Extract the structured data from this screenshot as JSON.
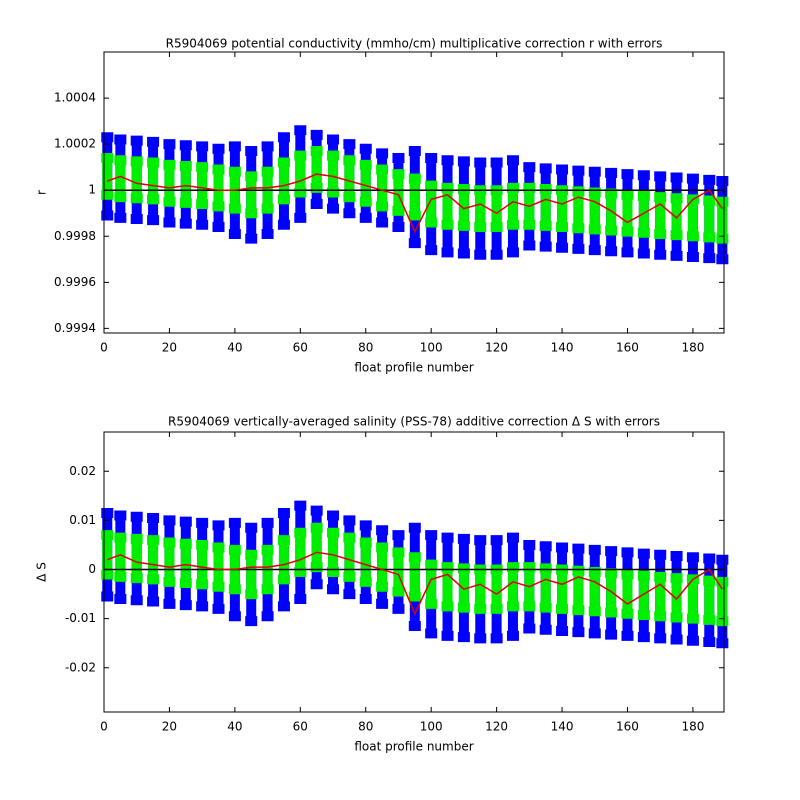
{
  "chart_data": [
    {
      "type": "errorbar",
      "title": "R5904069 potential conductivity (mmho/cm) multiplicative correction r with errors",
      "xlabel": "float profile number",
      "ylabel": "r",
      "x": [
        1,
        5,
        10,
        15,
        20,
        25,
        30,
        35,
        40,
        45,
        50,
        55,
        60,
        65,
        70,
        75,
        80,
        85,
        90,
        95,
        100,
        105,
        110,
        115,
        120,
        125,
        130,
        135,
        140,
        145,
        150,
        155,
        160,
        165,
        170,
        175,
        180,
        185,
        189
      ],
      "values": [
        1.00004,
        1.00006,
        1.00003,
        1.00002,
        1.00001,
        1.00002,
        1.00001,
        1,
        1,
        1.00001,
        1.00001,
        1.00002,
        1.00004,
        1.00007,
        1.00006,
        1.00004,
        1.00002,
        1,
        0.99998,
        0.99982,
        0.99996,
        0.99998,
        0.99992,
        0.99994,
        0.9999,
        0.99995,
        0.99993,
        0.99996,
        0.99994,
        0.99997,
        0.99995,
        0.99991,
        0.99986,
        0.9999,
        0.99994,
        0.99988,
        0.99996,
        1,
        0.99992
      ],
      "center": [
        1.00006,
        1.00005,
        1.000045,
        1.00004,
        1.00003,
        1.000025,
        1.00002,
        1.00001,
        1,
        0.99998,
        1,
        1.00004,
        1.00007,
        1.00009,
        1.00007,
        1.00005,
        1.00003,
        1.00001,
        0.99999,
        0.99997,
        0.99994,
        0.99993,
        0.999925,
        0.99992,
        0.99992,
        0.99993,
        0.99993,
        0.999925,
        0.99992,
        0.999915,
        0.99991,
        0.999905,
        0.9999,
        0.999895,
        0.99989,
        0.999885,
        0.99988,
        0.999875,
        0.99987
      ],
      "small_err": [
        8e-05,
        8e-05,
        8e-05,
        8e-05,
        8e-05,
        8e-05,
        8e-05,
        8e-05,
        8e-05,
        8e-05,
        8e-05,
        8e-05,
        8e-05,
        8e-05,
        8e-05,
        8e-05,
        8e-05,
        8e-05,
        8e-05,
        8e-05,
        8e-05,
        8e-05,
        8e-05,
        8e-05,
        8e-05,
        8e-05,
        8e-05,
        8e-05,
        8e-05,
        8e-05,
        8e-05,
        8e-05,
        8e-05,
        8e-05,
        8e-05,
        8e-05,
        8e-05,
        8e-05,
        8e-05
      ],
      "big_err": [
        0.00017,
        0.00017,
        0.00017,
        0.00017,
        0.00017,
        0.00017,
        0.00017,
        0.00017,
        0.00019,
        0.00019,
        0.00019,
        0.00019,
        0.00019,
        0.00015,
        0.00015,
        0.00015,
        0.00015,
        0.00015,
        0.00015,
        0.0002,
        0.0002,
        0.0002,
        0.0002,
        0.0002,
        0.0002,
        0.0002,
        0.00017,
        0.00017,
        0.00017,
        0.00017,
        0.00017,
        0.00017,
        0.00017,
        0.00017,
        0.00017,
        0.00017,
        0.00017,
        0.00017,
        0.00017
      ],
      "hline": 1,
      "line_color": "#e00000",
      "inner_color": "#00ee00",
      "outer_color": "#0000ff",
      "xlim": [
        0,
        189.5
      ],
      "ylim": [
        0.99938,
        1.0006
      ],
      "xticks": [
        0,
        20,
        40,
        60,
        80,
        100,
        120,
        140,
        160,
        180
      ],
      "yticks": [
        0.9994,
        0.9996,
        0.9998,
        1,
        1.0002,
        1.0004
      ]
    },
    {
      "type": "errorbar",
      "title": "R5904069 vertically-averaged salinity (PSS-78) additive correction Δ S with errors",
      "xlabel": "float profile number",
      "ylabel": "Δ S",
      "x": [
        1,
        5,
        10,
        15,
        20,
        25,
        30,
        35,
        40,
        45,
        50,
        55,
        60,
        65,
        70,
        75,
        80,
        85,
        90,
        95,
        100,
        105,
        110,
        115,
        120,
        125,
        130,
        135,
        140,
        145,
        150,
        155,
        160,
        165,
        170,
        175,
        180,
        185,
        189
      ],
      "values": [
        0.002,
        0.003,
        0.0015,
        0.001,
        0.0005,
        0.001,
        0.0005,
        0,
        0,
        0.0005,
        0.0005,
        0.001,
        0.002,
        0.0035,
        0.003,
        0.002,
        0.001,
        0,
        -0.001,
        -0.009,
        -0.002,
        -0.001,
        -0.004,
        -0.003,
        -0.005,
        -0.0025,
        -0.0035,
        -0.002,
        -0.003,
        -0.0015,
        -0.0025,
        -0.0045,
        -0.007,
        -0.005,
        -0.003,
        -0.006,
        -0.002,
        0,
        -0.004
      ],
      "center": [
        0.003,
        0.0025,
        0.00225,
        0.002,
        0.0015,
        0.00125,
        0.001,
        0.0005,
        0,
        -0.001,
        0,
        0.002,
        0.0035,
        0.0045,
        0.0035,
        0.0025,
        0.0015,
        0.0005,
        -0.0005,
        -0.0015,
        -0.003,
        -0.0035,
        -0.00375,
        -0.004,
        -0.004,
        -0.0035,
        -0.0035,
        -0.00375,
        -0.004,
        -0.00425,
        -0.0045,
        -0.00475,
        -0.005,
        -0.00525,
        -0.0055,
        -0.00575,
        -0.006,
        -0.00625,
        -0.0065
      ],
      "small_err": [
        0.004,
        0.004,
        0.004,
        0.004,
        0.004,
        0.004,
        0.004,
        0.004,
        0.004,
        0.004,
        0.004,
        0.004,
        0.004,
        0.004,
        0.004,
        0.004,
        0.004,
        0.004,
        0.004,
        0.004,
        0.004,
        0.004,
        0.004,
        0.004,
        0.004,
        0.004,
        0.004,
        0.004,
        0.004,
        0.004,
        0.004,
        0.004,
        0.004,
        0.004,
        0.004,
        0.004,
        0.004,
        0.004,
        0.004
      ],
      "big_err": [
        0.0085,
        0.0085,
        0.0085,
        0.0085,
        0.0085,
        0.0085,
        0.0085,
        0.0085,
        0.0095,
        0.0095,
        0.0095,
        0.0095,
        0.0095,
        0.0075,
        0.0075,
        0.0075,
        0.0075,
        0.0075,
        0.0075,
        0.01,
        0.01,
        0.01,
        0.01,
        0.01,
        0.01,
        0.01,
        0.0085,
        0.0085,
        0.0085,
        0.0085,
        0.0085,
        0.0085,
        0.0085,
        0.0085,
        0.0085,
        0.0085,
        0.0085,
        0.0085,
        0.0085
      ],
      "hline": 0,
      "line_color": "#e00000",
      "inner_color": "#00ee00",
      "outer_color": "#0000ff",
      "xlim": [
        0,
        189.5
      ],
      "ylim": [
        -0.029,
        0.028
      ],
      "xticks": [
        0,
        20,
        40,
        60,
        80,
        100,
        120,
        140,
        160,
        180
      ],
      "yticks": [
        -0.02,
        -0.01,
        0,
        0.01,
        0.02
      ]
    }
  ]
}
